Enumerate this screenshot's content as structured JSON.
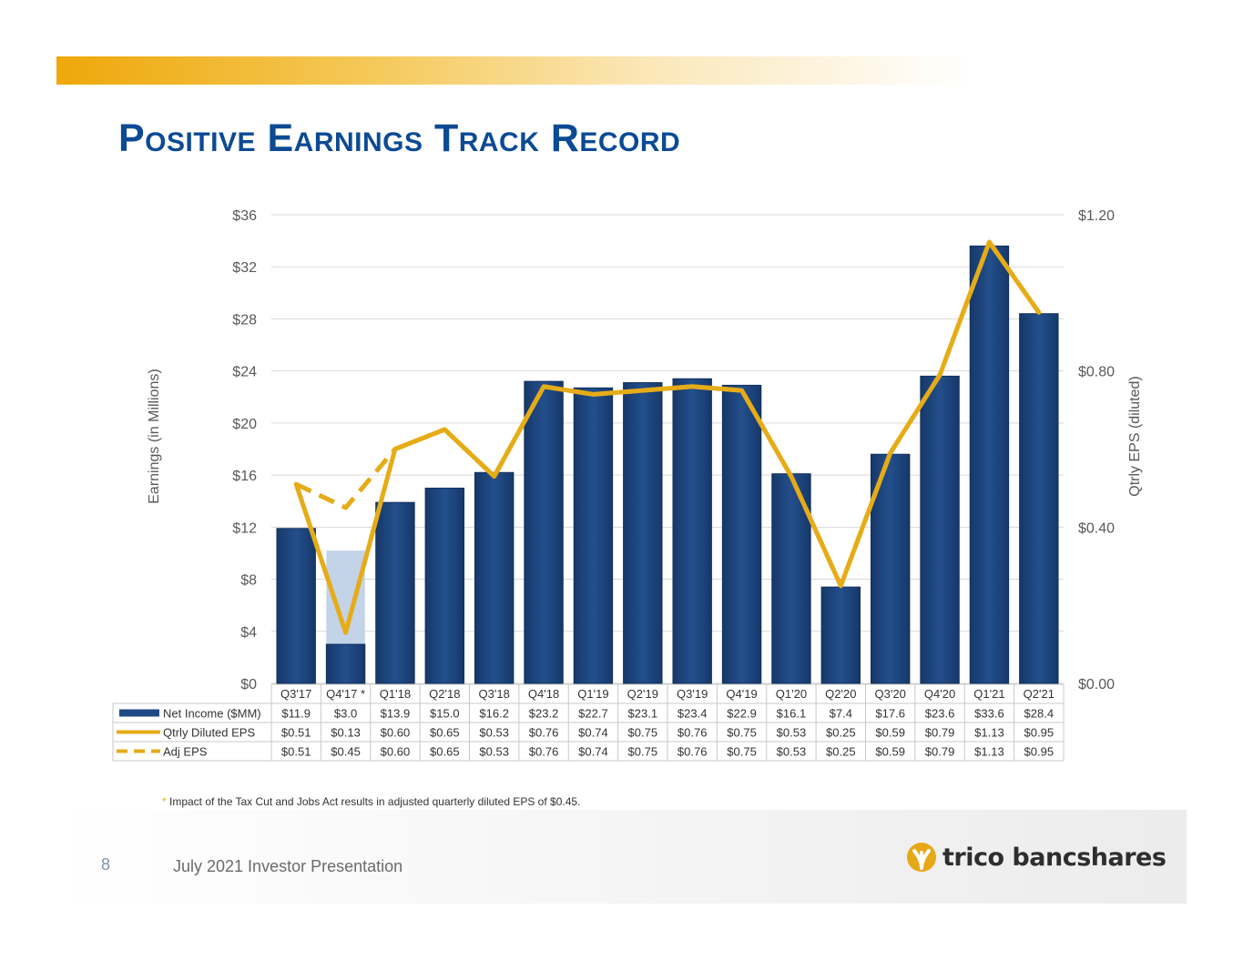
{
  "header": {
    "title": "Positive Earnings Track Record"
  },
  "chart_data": {
    "type": "bar",
    "categories": [
      "Q3'17",
      "Q4'17 *",
      "Q1'18",
      "Q2'18",
      "Q3'18",
      "Q4'18",
      "Q1'19",
      "Q2'19",
      "Q3'19",
      "Q4'19",
      "Q1'20",
      "Q2'20",
      "Q3'20",
      "Q4'20",
      "Q1'21",
      "Q2'21"
    ],
    "series": [
      {
        "name": "Net Income ($MM)",
        "type": "bar",
        "axis": "left",
        "values": [
          11.9,
          3.0,
          13.9,
          15.0,
          16.2,
          23.2,
          22.7,
          23.1,
          23.4,
          22.9,
          16.1,
          7.4,
          17.6,
          23.6,
          33.6,
          28.4
        ],
        "labels": [
          "$11.9",
          "$3.0",
          "$13.9",
          "$15.0",
          "$16.2",
          "$23.2",
          "$22.7",
          "$23.1",
          "$23.4",
          "$22.9",
          "$16.1",
          "$7.4",
          "$17.6",
          "$23.6",
          "$33.6",
          "$28.4"
        ]
      },
      {
        "name": "Qtrly Diluted EPS",
        "type": "line",
        "axis": "right",
        "values": [
          0.51,
          0.13,
          0.6,
          0.65,
          0.53,
          0.76,
          0.74,
          0.75,
          0.76,
          0.75,
          0.53,
          0.25,
          0.59,
          0.79,
          1.13,
          0.95
        ],
        "labels": [
          "$0.51",
          "$0.13",
          "$0.60",
          "$0.65",
          "$0.53",
          "$0.76",
          "$0.74",
          "$0.75",
          "$0.76",
          "$0.75",
          "$0.53",
          "$0.25",
          "$0.59",
          "$0.79",
          "$1.13",
          "$0.95"
        ]
      },
      {
        "name": "Adj EPS",
        "type": "dashed-line",
        "axis": "right",
        "values": [
          0.51,
          0.45,
          0.6,
          0.65,
          0.53,
          0.76,
          0.74,
          0.75,
          0.76,
          0.75,
          0.53,
          0.25,
          0.59,
          0.79,
          1.13,
          0.95
        ],
        "labels": [
          "$0.51",
          "$0.45",
          "$0.60",
          "$0.65",
          "$0.53",
          "$0.76",
          "$0.74",
          "$0.75",
          "$0.76",
          "$0.75",
          "$0.53",
          "$0.25",
          "$0.59",
          "$0.79",
          "$1.13",
          "$0.95"
        ]
      }
    ],
    "adjusted_net_income": {
      "category": "Q4'17 *",
      "value": 10.2
    },
    "left_axis": {
      "title": "Earnings (in Millions)",
      "range": [
        0,
        36
      ],
      "ticks": [
        0,
        4,
        8,
        12,
        16,
        20,
        24,
        28,
        32,
        36
      ],
      "tick_labels": [
        "$0",
        "$4",
        "$8",
        "$12",
        "$16",
        "$20",
        "$24",
        "$28",
        "$32",
        "$36"
      ]
    },
    "right_axis": {
      "title": "Qtrly EPS (diluted)",
      "range": [
        0,
        1.2
      ],
      "ticks": [
        0,
        0.4,
        0.8,
        1.2
      ],
      "tick_labels": [
        "$0.00",
        "$0.40",
        "$0.80",
        "$1.20"
      ]
    },
    "grid": true,
    "legend": "data-table-below"
  },
  "colors": {
    "bar": "#1f4a85",
    "bar_adjusted": "#c3d3e8",
    "line": "#e6ac17",
    "title": "#0c4a94"
  },
  "footnote": {
    "marker": "*",
    "text": " Impact of the Tax Cut and Jobs Act results in adjusted quarterly diluted EPS of $0.45."
  },
  "footer": {
    "page_number": "8",
    "text": "July 2021 Investor Presentation",
    "logo_text": "trico bancshares"
  }
}
